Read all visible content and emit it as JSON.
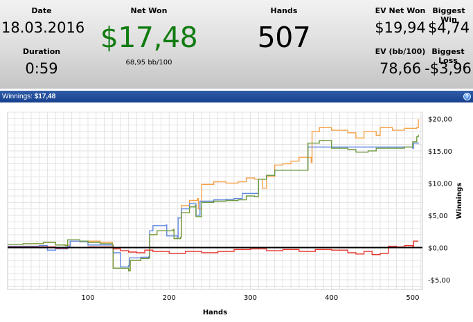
{
  "stats": {
    "date_label": "Date",
    "date_value": "18.03.2016",
    "duration_label": "Duration",
    "duration_value": "0:59",
    "net_won_label": "Net Won",
    "net_won_value": "$17,48",
    "net_won_sub": "68,95 bb/100",
    "hands_label": "Hands",
    "hands_value": "507",
    "ev_net_won_label": "EV Net Won",
    "ev_net_won_value": "$19,94",
    "ev_bb_label": "EV (bb/100)",
    "ev_bb_value": "78,66",
    "biggest_win_label": "Biggest Win",
    "biggest_win_value": "$4,74",
    "biggest_loss_label": "Biggest Loss",
    "biggest_loss_value": "-$3,96"
  },
  "title_bar": {
    "prefix": "Winnings:",
    "value": "$17,48",
    "help_glyph": "?"
  },
  "colors": {
    "net_won_text": "#117c11",
    "orange": "#f5a14a",
    "blue": "#5f86e0",
    "green": "#6e9a3e",
    "red": "#e8312a",
    "zero_line": "#000000"
  },
  "chart_data": {
    "type": "line",
    "xlabel": "Hands",
    "ylabel": "Winnings",
    "xlim": [
      1,
      512
    ],
    "ylim": [
      -6.5,
      21
    ],
    "x_ticks": [
      100,
      200,
      300,
      400,
      500
    ],
    "y_ticks": [
      {
        "value": -5,
        "label": "-$5,00"
      },
      {
        "value": 0,
        "label": "$0,00"
      },
      {
        "value": 5,
        "label": "$5,00"
      },
      {
        "value": 10,
        "label": "$10,00"
      },
      {
        "value": 15,
        "label": "$15,00"
      },
      {
        "value": 20,
        "label": "$20,00"
      }
    ],
    "grid": true,
    "series": [
      {
        "color_key": "orange",
        "points": [
          [
            1,
            0.5
          ],
          [
            20,
            0.6
          ],
          [
            45,
            0.8
          ],
          [
            60,
            0.4
          ],
          [
            78,
            1.0
          ],
          [
            100,
            1.0
          ],
          [
            115,
            0.8
          ],
          [
            130,
            0.4
          ],
          [
            131,
            -3.2
          ],
          [
            150,
            -3.6
          ],
          [
            152,
            -2.0
          ],
          [
            165,
            -1.7
          ],
          [
            175,
            -1.6
          ],
          [
            176,
            2.0
          ],
          [
            185,
            2.6
          ],
          [
            205,
            2.8
          ],
          [
            206,
            1.4
          ],
          [
            214,
            1.6
          ],
          [
            215,
            6.5
          ],
          [
            225,
            7.3
          ],
          [
            235,
            7.6
          ],
          [
            236,
            6.0
          ],
          [
            240,
            9.8
          ],
          [
            255,
            10.2
          ],
          [
            270,
            10.0
          ],
          [
            285,
            10.2
          ],
          [
            295,
            10.8
          ],
          [
            305,
            10.6
          ],
          [
            315,
            9.2
          ],
          [
            320,
            11.0
          ],
          [
            330,
            12.8
          ],
          [
            340,
            13.0
          ],
          [
            350,
            13.4
          ],
          [
            360,
            14.0
          ],
          [
            375,
            13.2
          ],
          [
            376,
            18.0
          ],
          [
            385,
            18.6
          ],
          [
            400,
            18.2
          ],
          [
            420,
            17.8
          ],
          [
            430,
            17.0
          ],
          [
            440,
            18.0
          ],
          [
            455,
            17.4
          ],
          [
            460,
            18.6
          ],
          [
            475,
            18.2
          ],
          [
            490,
            18.5
          ],
          [
            505,
            18.6
          ],
          [
            507,
            19.9
          ]
        ]
      },
      {
        "color_key": "blue",
        "points": [
          [
            1,
            0.2
          ],
          [
            40,
            0.3
          ],
          [
            50,
            -0.4
          ],
          [
            60,
            -0.2
          ],
          [
            75,
            0.2
          ],
          [
            78,
            1.0
          ],
          [
            90,
            0.9
          ],
          [
            100,
            0.4
          ],
          [
            130,
            0.4
          ],
          [
            131,
            -0.8
          ],
          [
            140,
            -3.0
          ],
          [
            150,
            -2.8
          ],
          [
            151,
            -1.6
          ],
          [
            165,
            -1.5
          ],
          [
            175,
            -1.4
          ],
          [
            176,
            2.6
          ],
          [
            180,
            3.4
          ],
          [
            196,
            3.5
          ],
          [
            197,
            1.8
          ],
          [
            210,
            1.6
          ],
          [
            211,
            4.6
          ],
          [
            215,
            6.0
          ],
          [
            225,
            6.8
          ],
          [
            232,
            6.8
          ],
          [
            233,
            5.0
          ],
          [
            238,
            7.2
          ],
          [
            255,
            7.4
          ],
          [
            270,
            7.5
          ],
          [
            280,
            7.6
          ],
          [
            290,
            8.4
          ],
          [
            300,
            8.4
          ],
          [
            309,
            8.4
          ],
          [
            310,
            10.6
          ],
          [
            320,
            11.2
          ],
          [
            330,
            12.0
          ],
          [
            350,
            12.0
          ],
          [
            370,
            12.0
          ],
          [
            371,
            15.6
          ],
          [
            390,
            15.6
          ],
          [
            410,
            15.6
          ],
          [
            430,
            15.6
          ],
          [
            450,
            15.6
          ],
          [
            470,
            15.6
          ],
          [
            500,
            15.4
          ],
          [
            501,
            16.2
          ],
          [
            507,
            16.3
          ]
        ]
      },
      {
        "color_key": "green",
        "points": [
          [
            1,
            0.5
          ],
          [
            20,
            0.6
          ],
          [
            45,
            0.8
          ],
          [
            60,
            0.4
          ],
          [
            72,
            0.3
          ],
          [
            75,
            1.2
          ],
          [
            90,
            1.0
          ],
          [
            100,
            0.8
          ],
          [
            115,
            0.6
          ],
          [
            130,
            0.4
          ],
          [
            131,
            -3.2
          ],
          [
            150,
            -3.6
          ],
          [
            152,
            -2.0
          ],
          [
            165,
            -1.7
          ],
          [
            175,
            -1.6
          ],
          [
            176,
            2.0
          ],
          [
            185,
            2.6
          ],
          [
            205,
            2.8
          ],
          [
            206,
            1.4
          ],
          [
            214,
            1.6
          ],
          [
            215,
            5.4
          ],
          [
            225,
            6.3
          ],
          [
            232,
            6.5
          ],
          [
            233,
            4.8
          ],
          [
            240,
            7.0
          ],
          [
            255,
            7.2
          ],
          [
            270,
            7.3
          ],
          [
            285,
            7.4
          ],
          [
            295,
            8.0
          ],
          [
            305,
            7.9
          ],
          [
            310,
            10.6
          ],
          [
            320,
            11.2
          ],
          [
            330,
            12.0
          ],
          [
            350,
            12.0
          ],
          [
            370,
            12.0
          ],
          [
            371,
            16.2
          ],
          [
            385,
            16.6
          ],
          [
            400,
            15.4
          ],
          [
            420,
            15.2
          ],
          [
            430,
            14.8
          ],
          [
            445,
            15.0
          ],
          [
            455,
            15.4
          ],
          [
            470,
            15.4
          ],
          [
            490,
            15.6
          ],
          [
            500,
            16.4
          ],
          [
            505,
            17.2
          ],
          [
            507,
            17.5
          ]
        ]
      },
      {
        "color_key": "red",
        "points": [
          [
            1,
            0.1
          ],
          [
            40,
            0.1
          ],
          [
            60,
            -0.1
          ],
          [
            75,
            0.0
          ],
          [
            100,
            0.1
          ],
          [
            130,
            0.1
          ],
          [
            131,
            -0.2
          ],
          [
            140,
            -0.5
          ],
          [
            150,
            -0.7
          ],
          [
            160,
            -0.8
          ],
          [
            170,
            -0.4
          ],
          [
            180,
            -0.6
          ],
          [
            200,
            -0.9
          ],
          [
            220,
            -0.6
          ],
          [
            240,
            -0.8
          ],
          [
            260,
            -0.6
          ],
          [
            280,
            -0.3
          ],
          [
            300,
            -0.2
          ],
          [
            320,
            -0.5
          ],
          [
            340,
            -0.3
          ],
          [
            360,
            -0.6
          ],
          [
            380,
            -0.3
          ],
          [
            400,
            -0.4
          ],
          [
            420,
            -0.8
          ],
          [
            430,
            -1.0
          ],
          [
            440,
            -0.6
          ],
          [
            450,
            -1.1
          ],
          [
            460,
            -0.9
          ],
          [
            470,
            0.2
          ],
          [
            480,
            0.1
          ],
          [
            490,
            0.3
          ],
          [
            500,
            0.2
          ],
          [
            501,
            1.0
          ],
          [
            507,
            1.0
          ]
        ]
      }
    ]
  }
}
